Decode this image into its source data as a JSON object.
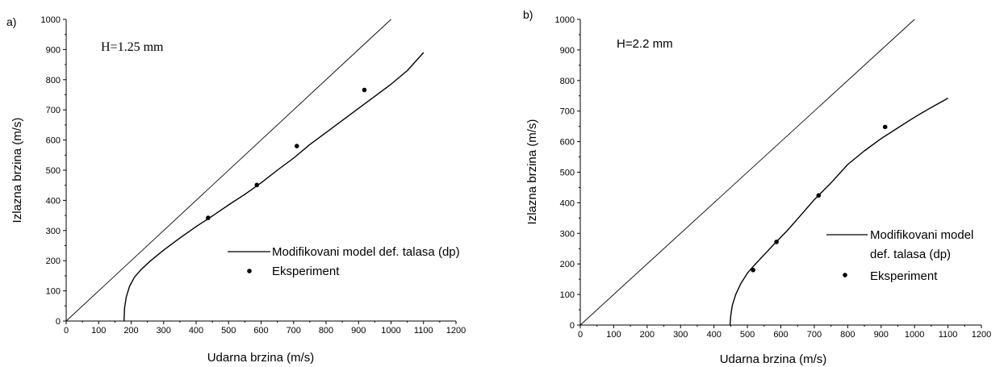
{
  "chart_data": [
    {
      "type": "line",
      "panel_label": "a)",
      "annotation": "H=1.25 mm",
      "xlabel": "Udarna brzina (m/s)",
      "ylabel": "Izlazna brzina (m/s)",
      "xlim": [
        0,
        1200
      ],
      "ylim": [
        0,
        1000
      ],
      "xticks": [
        0,
        100,
        200,
        300,
        400,
        500,
        600,
        700,
        800,
        900,
        1000,
        1100,
        1200
      ],
      "yticks": [
        0,
        100,
        200,
        300,
        400,
        500,
        600,
        700,
        800,
        900,
        1000
      ],
      "grid": false,
      "legend_position": "lower-right",
      "reference_line": {
        "x": [
          0,
          1000
        ],
        "y": [
          0,
          1000
        ]
      },
      "series": [
        {
          "name": "Modifikovani model def. talasa (dp)",
          "style": "line",
          "x": [
            178,
            180,
            185,
            195,
            210,
            230,
            260,
            300,
            350,
            400,
            450,
            500,
            550,
            600,
            650,
            700,
            750,
            800,
            850,
            900,
            950,
            1000,
            1050,
            1100
          ],
          "y": [
            0,
            45,
            80,
            115,
            145,
            170,
            200,
            235,
            275,
            313,
            348,
            385,
            420,
            458,
            500,
            540,
            585,
            625,
            665,
            705,
            745,
            785,
            830,
            890
          ]
        },
        {
          "name": "Eksperiment",
          "style": "scatter",
          "x": [
            437,
            587,
            710,
            918
          ],
          "y": [
            342,
            451,
            580,
            766
          ]
        }
      ]
    },
    {
      "type": "line",
      "panel_label": "b)",
      "annotation": "H=2.2 mm",
      "xlabel": "Udarna brzina (m/s)",
      "ylabel": "Izlazna brzina (m/s)",
      "xlim": [
        0,
        1200
      ],
      "ylim": [
        0,
        1000
      ],
      "xticks": [
        0,
        100,
        200,
        300,
        400,
        500,
        600,
        700,
        800,
        900,
        1000,
        1100,
        1200
      ],
      "yticks": [
        0,
        100,
        200,
        300,
        400,
        500,
        600,
        700,
        800,
        900,
        1000
      ],
      "grid": false,
      "legend_position": "lower-right",
      "reference_line": {
        "x": [
          0,
          1000
        ],
        "y": [
          0,
          1000
        ]
      },
      "series": [
        {
          "name_lines": [
            "Modifikovani model",
            "def. talasa (dp)"
          ],
          "style": "line",
          "x": [
            448,
            450,
            455,
            465,
            480,
            500,
            520,
            550,
            580,
            620,
            660,
            700,
            750,
            800,
            850,
            900,
            950,
            1000,
            1050,
            1100
          ],
          "y": [
            0,
            30,
            65,
            100,
            135,
            170,
            195,
            230,
            265,
            310,
            360,
            410,
            465,
            525,
            570,
            610,
            645,
            680,
            712,
            742
          ]
        },
        {
          "name": "Eksperiment",
          "style": "scatter",
          "x": [
            517,
            587,
            713,
            912
          ],
          "y": [
            180,
            272,
            424,
            648
          ]
        }
      ]
    }
  ]
}
